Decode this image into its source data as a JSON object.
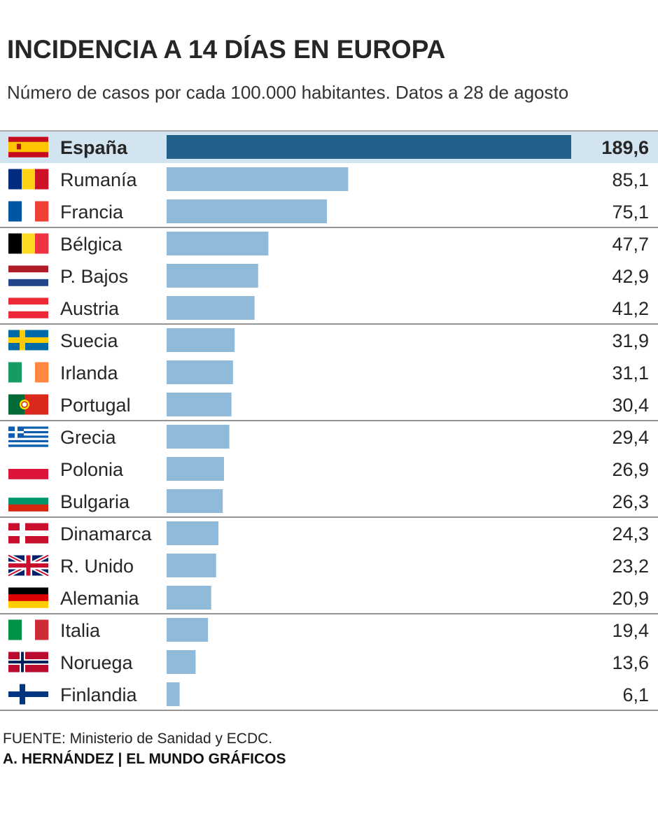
{
  "title": "INCIDENCIA A 14 DÍAS EN EUROPA",
  "subtitle": "Número de casos por cada 100.000 habitantes. Datos a 28 de agosto",
  "source": "FUENTE: Ministerio de Sanidad y ECDC.",
  "credit": "A. HERNÁNDEZ | EL MUNDO GRÁFICOS",
  "colors": {
    "highlight_bar": "#23608a",
    "bar": "#8fbada",
    "highlight_row": "#d3e4f1",
    "text": "#262626",
    "separator": "#555555"
  },
  "chart_data": {
    "type": "bar",
    "orientation": "horizontal",
    "highlight": "España",
    "group_separators_after": [
      "Francia",
      "Austria",
      "Portugal",
      "Bulgaria",
      "Alemania"
    ],
    "categories": [
      "España",
      "Rumanía",
      "Francia",
      "Bélgica",
      "P. Bajos",
      "Austria",
      "Suecia",
      "Irlanda",
      "Portugal",
      "Grecia",
      "Polonia",
      "Bulgaria",
      "Dinamarca",
      "R. Unido",
      "Alemania",
      "Italia",
      "Noruega",
      "Finlandia"
    ],
    "values": [
      189.6,
      85.1,
      75.1,
      47.7,
      42.9,
      41.2,
      31.9,
      31.1,
      30.4,
      29.4,
      26.9,
      26.3,
      24.3,
      23.2,
      20.9,
      19.4,
      13.6,
      6.1
    ],
    "value_labels": [
      "189,6",
      "85,1",
      "75,1",
      "47,7",
      "42,9",
      "41,2",
      "31,9",
      "31,1",
      "30,4",
      "29,4",
      "26,9",
      "26,3",
      "24,3",
      "23,2",
      "20,9",
      "19,4",
      "13,6",
      "6,1"
    ],
    "flag_icons": [
      "flag-spain-icon",
      "flag-romania-icon",
      "flag-france-icon",
      "flag-belgium-icon",
      "flag-netherlands-icon",
      "flag-austria-icon",
      "flag-sweden-icon",
      "flag-ireland-icon",
      "flag-portugal-icon",
      "flag-greece-icon",
      "flag-poland-icon",
      "flag-bulgaria-icon",
      "flag-denmark-icon",
      "flag-uk-icon",
      "flag-germany-icon",
      "flag-italy-icon",
      "flag-norway-icon",
      "flag-finland-icon"
    ],
    "xlim": [
      0,
      189.6
    ],
    "grid": false
  }
}
